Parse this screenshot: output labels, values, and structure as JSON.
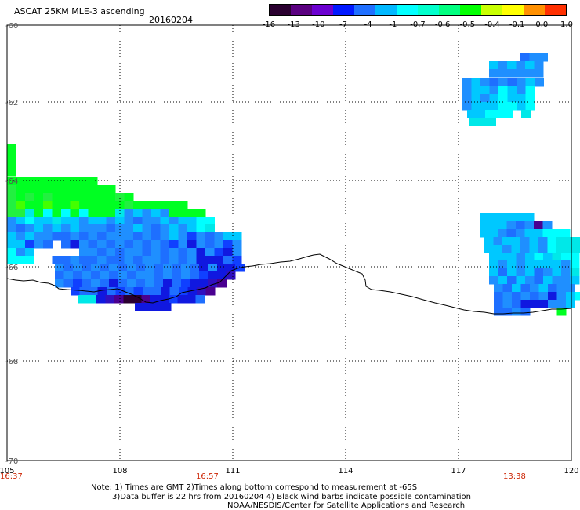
{
  "header": {
    "title": "ASCAT 25KM MLE-3 ascending",
    "date": "20160204"
  },
  "colorbar": {
    "colors": [
      "#2a0030",
      "#5a0080",
      "#6b00d0",
      "#0018ff",
      "#1f6fff",
      "#00b8ff",
      "#00ffff",
      "#00ffcc",
      "#00ff80",
      "#00ff00",
      "#c8ff00",
      "#ffff00",
      "#ff9000",
      "#ff3000"
    ],
    "labels": [
      "-16",
      "-13",
      "-10",
      "-7",
      "-4",
      "-1",
      "-0.7",
      "-0.6",
      "-0.5",
      "-0.4",
      "-0.1",
      "0.0",
      "1.0"
    ]
  },
  "axes": {
    "x_ticks": [
      "105",
      "108",
      "111",
      "114",
      "117",
      "120"
    ],
    "y_ticks": [
      "-60",
      "-62",
      "-64",
      "-66",
      "-68",
      "-70"
    ]
  },
  "times": [
    "16:37",
    "16:57",
    "13:38"
  ],
  "notes": {
    "line1": "Note: 1) Times are GMT 2)Times along bottom correspond to measurement at -65S",
    "line2": "3)Data buffer is 22 hrs from 20160204 4) Black wind barbs indicate possible contamination",
    "line3": "NOAA/NESDIS/Center for Satellite Applications and Research"
  }
}
